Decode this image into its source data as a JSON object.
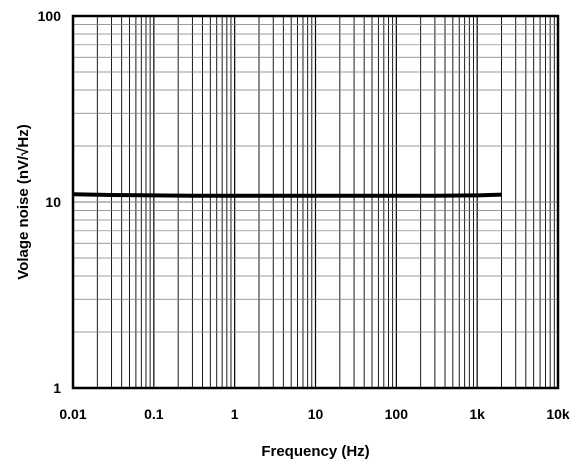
{
  "chart_data": {
    "type": "line",
    "title": "",
    "xlabel": "Frequency (Hz)",
    "ylabel": "Volage noise (nV/√Hz)",
    "x_scale": "log",
    "y_scale": "log",
    "xlim": [
      0.01,
      10000
    ],
    "ylim": [
      1,
      100
    ],
    "grid": true,
    "x_ticks": [
      {
        "value": 0.01,
        "label": "0.01"
      },
      {
        "value": 0.1,
        "label": "0.1"
      },
      {
        "value": 1,
        "label": "1"
      },
      {
        "value": 10,
        "label": "10"
      },
      {
        "value": 100,
        "label": "100"
      },
      {
        "value": 1000,
        "label": "1k"
      },
      {
        "value": 10000,
        "label": "10k"
      }
    ],
    "y_ticks": [
      {
        "value": 1,
        "label": "1"
      },
      {
        "value": 10,
        "label": "10"
      },
      {
        "value": 100,
        "label": "100"
      }
    ],
    "series": [
      {
        "color": "#000000",
        "x": [
          0.01,
          0.03,
          0.1,
          0.3,
          1,
          3,
          10,
          30,
          100,
          300,
          1000,
          2000
        ],
        "y": [
          11.0,
          10.9,
          10.85,
          10.8,
          10.8,
          10.8,
          10.8,
          10.8,
          10.8,
          10.8,
          10.85,
          10.95
        ]
      }
    ]
  }
}
